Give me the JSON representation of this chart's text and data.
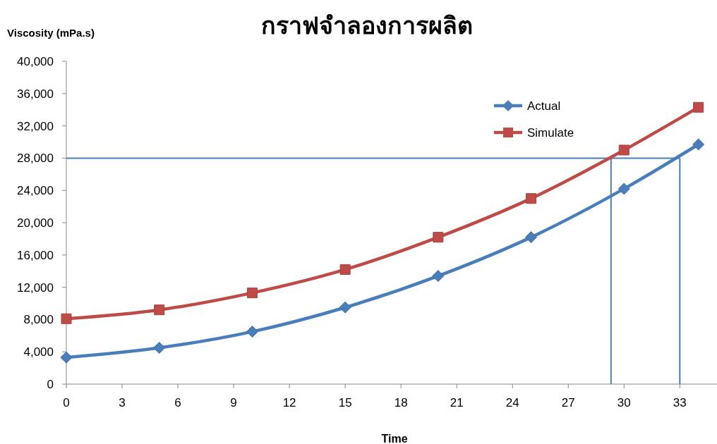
{
  "chart_data": {
    "type": "line",
    "title": "กราฟจำลองการผลิต",
    "xlabel": "Time",
    "ylabel": "Viscosity (mPa.s)",
    "xlim": [
      0,
      35
    ],
    "xticks": [
      0,
      3,
      6,
      9,
      12,
      15,
      18,
      21,
      24,
      27,
      30,
      33
    ],
    "ylim": [
      0,
      40000
    ],
    "yticks": [
      0,
      {
        "value": 4000,
        "label": "4,000"
      },
      {
        "value": 8000,
        "label": "8,000"
      },
      {
        "value": 12000,
        "label": "12,000"
      },
      {
        "value": 16000,
        "label": "16,000"
      },
      {
        "value": 20000,
        "label": "20,000"
      },
      {
        "value": 24000,
        "label": "24,000"
      },
      {
        "value": 28000,
        "label": "28,000"
      },
      {
        "value": 32000,
        "label": "32,000"
      },
      {
        "value": 36000,
        "label": "36,000"
      },
      {
        "value": 40000,
        "label": "40,000"
      }
    ],
    "x": [
      0,
      5,
      10,
      15,
      20,
      25,
      30,
      34
    ],
    "series": [
      {
        "name": "Actual",
        "color": "#4a7ebb",
        "marker": "diamond",
        "values": [
          3300,
          4500,
          6500,
          9500,
          13400,
          18200,
          24200,
          29700
        ]
      },
      {
        "name": "Simulate",
        "color": "#be4b48",
        "marker": "square",
        "values": [
          8100,
          9200,
          11300,
          14200,
          18200,
          23000,
          29000,
          34300
        ]
      }
    ],
    "ref_lines": [
      {
        "axis": "y",
        "value": 28000,
        "color": "#4a7ebb"
      },
      {
        "axis": "x",
        "value": 29.3,
        "color": "#4a7ebb"
      },
      {
        "axis": "x",
        "value": 33,
        "color": "#4a7ebb"
      }
    ],
    "legend": "top right",
    "grid": false
  }
}
